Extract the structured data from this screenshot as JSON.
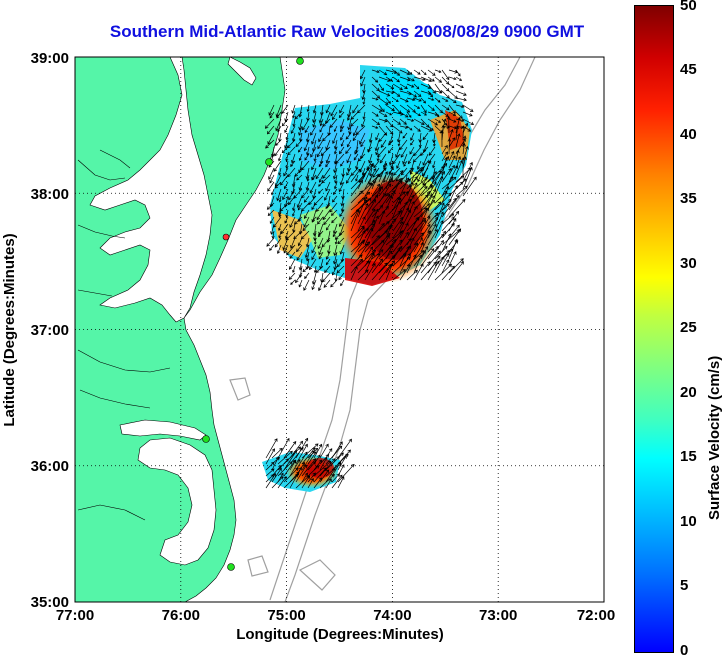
{
  "title": "Southern Mid-Atlantic Raw Velocities 2008/08/29 0900 GMT",
  "xlabel": "Longitude (Degrees:Minutes)",
  "ylabel": "Latitude (Degrees:Minutes)",
  "x_ticks": [
    "77:00",
    "76:00",
    "75:00",
    "74:00",
    "73:00",
    "72:00"
  ],
  "y_ticks": [
    "39:00",
    "38:00",
    "37:00",
    "36:00",
    "35:00"
  ],
  "colorbar": {
    "label": "Surface Velocity (cm/s)",
    "ticks": [
      "50",
      "45",
      "40",
      "35",
      "30",
      "25",
      "20",
      "15",
      "10",
      "5",
      "0"
    ]
  },
  "colors": {
    "land": "#55f5a8",
    "title": "#1010e0",
    "bathymetry": "#a0a0a0"
  },
  "map_extent": {
    "lon": [
      -77,
      -72
    ],
    "lat": [
      35,
      39
    ]
  }
}
